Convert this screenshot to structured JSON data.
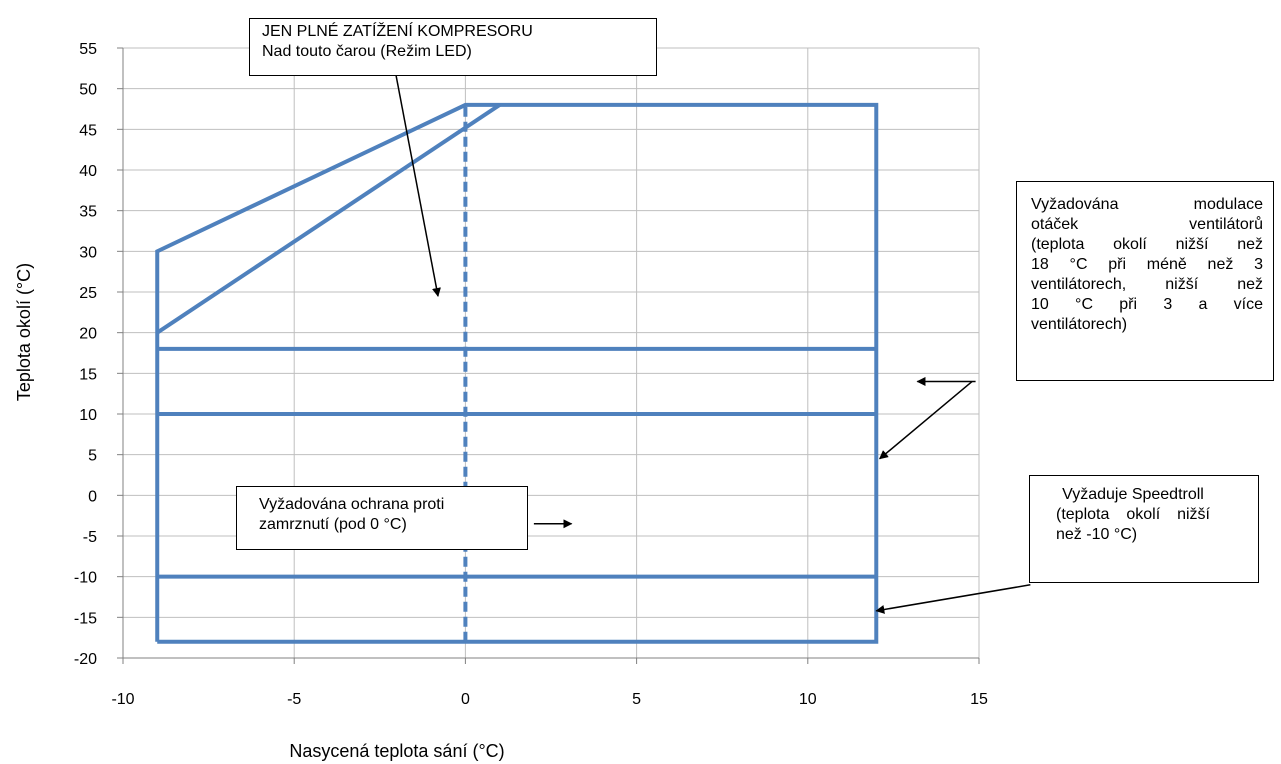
{
  "chart_data": {
    "type": "line",
    "title": "",
    "xlabel": "Nasycená teplota sání (°C)",
    "ylabel": "Teplota okolí (°C)",
    "xlim": [
      -10,
      15
    ],
    "ylim": [
      -20,
      55
    ],
    "x_ticks": [
      "-10",
      "-5",
      "0",
      "5",
      "10",
      "15"
    ],
    "y_ticks": [
      "55",
      "50",
      "45",
      "40",
      "35",
      "30",
      "25",
      "20",
      "15",
      "10",
      "5",
      "0",
      "-5",
      "-10",
      "-15",
      "-20"
    ],
    "grid": true,
    "line_color": "#4f81bd",
    "series": [
      {
        "style": "solid",
        "points": [
          [
            -9,
            -18
          ],
          [
            -9,
            30
          ],
          [
            0,
            48
          ],
          [
            12,
            48
          ],
          [
            12,
            -18
          ],
          [
            -9,
            -18
          ]
        ]
      },
      {
        "style": "solid",
        "points": [
          [
            -9,
            20
          ],
          [
            1,
            48
          ]
        ]
      },
      {
        "style": "solid",
        "points": [
          [
            -9,
            18
          ],
          [
            12,
            18
          ]
        ]
      },
      {
        "style": "solid",
        "points": [
          [
            -9,
            10
          ],
          [
            12,
            10
          ]
        ]
      },
      {
        "style": "solid",
        "points": [
          [
            -9,
            -10
          ],
          [
            12,
            -10
          ]
        ]
      },
      {
        "style": "dashed",
        "points": [
          [
            0,
            -18
          ],
          [
            0,
            48
          ]
        ]
      }
    ],
    "annotations": {
      "compressor": {
        "lines": [
          "JEN PLNÉ ZATÍŽENÍ KOMPRESORU",
          "Nad touto čarou (Režim LED)"
        ],
        "arrows": [
          [
            [
              -2.2,
              55.5
            ],
            [
              -0.8,
              24.5
            ]
          ]
        ]
      },
      "fans": {
        "justified": [
          "Vyžadována modulace",
          "otáček ventilátorů",
          "(teplota okolí nižší než",
          "18 °C při méně než 3",
          "ventilátorech, nižší než",
          "10 °C při 3 a více"
        ],
        "last": "ventilátorech)",
        "arrows": [
          [
            [
              14.9,
              14
            ],
            [
              13.2,
              14
            ]
          ],
          [
            [
              14.8,
              14
            ],
            [
              12.1,
              4.5
            ]
          ]
        ]
      },
      "antifreeze": {
        "lines": [
          "Vyžadována ochrana proti",
          "zamrznutí (pod 0 °C)"
        ],
        "arrows": [
          [
            [
              2,
              -3.5
            ],
            [
              3.1,
              -3.5
            ]
          ]
        ]
      },
      "speedtroll": {
        "first": "Vyžaduje Speedtroll",
        "justified": [
          "(teplota okolí nižší"
        ],
        "last": "než -10 °C)",
        "arrows": [
          [
            [
              16.5,
              -11
            ],
            [
              12,
              -14.2
            ]
          ]
        ]
      }
    }
  }
}
